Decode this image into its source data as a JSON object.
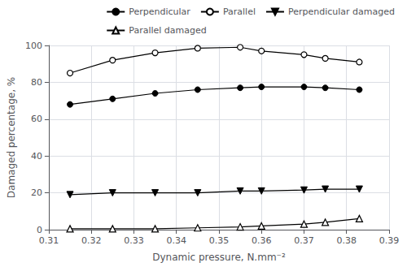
{
  "chart_data": {
    "type": "line",
    "x": [
      0.315,
      0.325,
      0.335,
      0.345,
      0.355,
      0.36,
      0.37,
      0.375,
      0.383
    ],
    "series": [
      {
        "name": "Perpendicular",
        "color": "#000000",
        "marker": "circle",
        "values": [
          68,
          71,
          74,
          76,
          77,
          77.5,
          77.5,
          77,
          76
        ]
      },
      {
        "name": "Parallel",
        "color": "#000000",
        "marker": "open circle",
        "values": [
          85,
          92,
          96,
          98.5,
          99,
          97,
          95,
          93,
          91
        ]
      },
      {
        "name": "Perpendicular damaged",
        "color": "#000000",
        "marker": "triangle-down",
        "values": [
          19,
          20,
          20,
          20,
          21,
          21,
          21.5,
          22,
          22
        ]
      },
      {
        "name": "Parallel damaged",
        "color": "#000000",
        "marker": "open triangle-up",
        "values": [
          0.5,
          0.5,
          0.5,
          1,
          1.5,
          2,
          3,
          4,
          6
        ]
      }
    ],
    "xlabel": "Dynamic pressure, N.mm⁻²",
    "ylabel": "Damaged percentage, %",
    "xlim": [
      0.31,
      0.39
    ],
    "ylim": [
      0,
      100
    ],
    "xticks": [
      0.31,
      0.32,
      0.33,
      0.34,
      0.35,
      0.36,
      0.37,
      0.38,
      0.39
    ],
    "yticks": [
      0,
      20,
      40,
      60,
      80,
      100
    ],
    "grid": true,
    "legend": "upper right"
  }
}
